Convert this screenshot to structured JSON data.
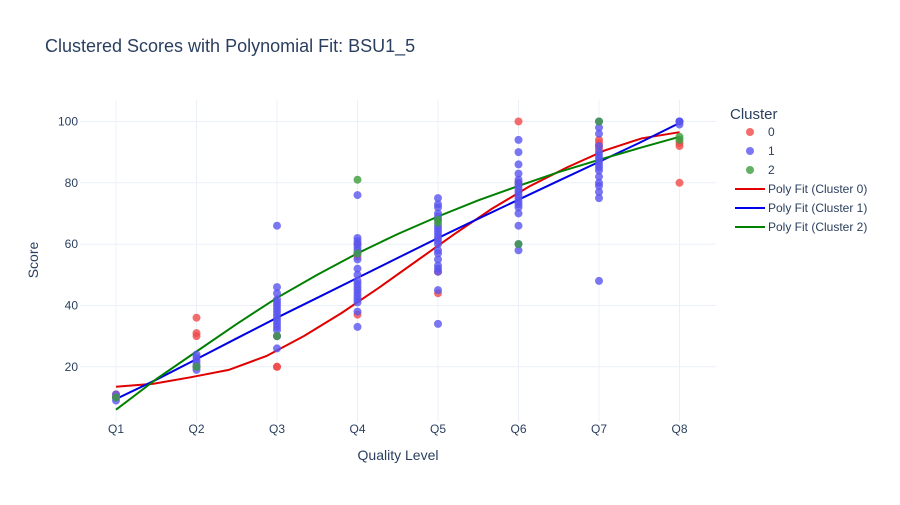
{
  "chart_data": {
    "type": "scatter",
    "title": "Clustered Scores with Polynomial Fit: BSU1_5",
    "xlabel": "Quality Level",
    "ylabel": "Score",
    "categories": [
      "Q1",
      "Q2",
      "Q3",
      "Q4",
      "Q5",
      "Q6",
      "Q7",
      "Q8"
    ],
    "ylim": [
      2,
      107
    ],
    "yticks": [
      20,
      40,
      60,
      80,
      100
    ],
    "grid": true,
    "legend": {
      "title": "Cluster",
      "placement": "right"
    },
    "series": [
      {
        "name": "0",
        "color": "#f04848",
        "points": [
          [
            "Q1",
            10
          ],
          [
            "Q1",
            11
          ],
          [
            "Q2",
            36
          ],
          [
            "Q2",
            31
          ],
          [
            "Q2",
            30
          ],
          [
            "Q2",
            20
          ],
          [
            "Q3",
            20
          ],
          [
            "Q3",
            20
          ],
          [
            "Q3",
            30
          ],
          [
            "Q4",
            37
          ],
          [
            "Q4",
            60
          ],
          [
            "Q4",
            56
          ],
          [
            "Q5",
            44
          ],
          [
            "Q5",
            51
          ],
          [
            "Q6",
            100
          ],
          [
            "Q6",
            80
          ],
          [
            "Q7",
            94
          ],
          [
            "Q7",
            93
          ],
          [
            "Q7",
            92
          ],
          [
            "Q7",
            91
          ],
          [
            "Q8",
            92
          ],
          [
            "Q8",
            80
          ],
          [
            "Q8",
            93
          ]
        ]
      },
      {
        "name": "1",
        "color": "#5a55ef",
        "points": [
          [
            "Q1",
            9
          ],
          [
            "Q1",
            10
          ],
          [
            "Q1",
            11
          ],
          [
            "Q2",
            19
          ],
          [
            "Q2",
            20
          ],
          [
            "Q2",
            21
          ],
          [
            "Q2",
            22
          ],
          [
            "Q2",
            23
          ],
          [
            "Q2",
            24
          ],
          [
            "Q3",
            66
          ],
          [
            "Q3",
            46
          ],
          [
            "Q3",
            44
          ],
          [
            "Q3",
            42
          ],
          [
            "Q3",
            41
          ],
          [
            "Q3",
            40
          ],
          [
            "Q3",
            39
          ],
          [
            "Q3",
            38
          ],
          [
            "Q3",
            37
          ],
          [
            "Q3",
            36
          ],
          [
            "Q3",
            35
          ],
          [
            "Q3",
            34
          ],
          [
            "Q3",
            33
          ],
          [
            "Q3",
            32
          ],
          [
            "Q3",
            30
          ],
          [
            "Q3",
            26
          ],
          [
            "Q4",
            76
          ],
          [
            "Q4",
            62
          ],
          [
            "Q4",
            61
          ],
          [
            "Q4",
            60
          ],
          [
            "Q4",
            59
          ],
          [
            "Q4",
            58
          ],
          [
            "Q4",
            57
          ],
          [
            "Q4",
            55
          ],
          [
            "Q4",
            52
          ],
          [
            "Q4",
            50
          ],
          [
            "Q4",
            48
          ],
          [
            "Q4",
            47
          ],
          [
            "Q4",
            46
          ],
          [
            "Q4",
            45
          ],
          [
            "Q4",
            44
          ],
          [
            "Q4",
            43
          ],
          [
            "Q4",
            42
          ],
          [
            "Q4",
            41
          ],
          [
            "Q4",
            38
          ],
          [
            "Q4",
            33
          ],
          [
            "Q5",
            75
          ],
          [
            "Q5",
            73
          ],
          [
            "Q5",
            72
          ],
          [
            "Q5",
            70
          ],
          [
            "Q5",
            69
          ],
          [
            "Q5",
            68
          ],
          [
            "Q5",
            66
          ],
          [
            "Q5",
            65
          ],
          [
            "Q5",
            64
          ],
          [
            "Q5",
            63
          ],
          [
            "Q5",
            62
          ],
          [
            "Q5",
            61
          ],
          [
            "Q5",
            60
          ],
          [
            "Q5",
            58
          ],
          [
            "Q5",
            57
          ],
          [
            "Q5",
            55
          ],
          [
            "Q5",
            53
          ],
          [
            "Q5",
            52
          ],
          [
            "Q5",
            51
          ],
          [
            "Q5",
            45
          ],
          [
            "Q5",
            34
          ],
          [
            "Q6",
            94
          ],
          [
            "Q6",
            90
          ],
          [
            "Q6",
            86
          ],
          [
            "Q6",
            83
          ],
          [
            "Q6",
            81
          ],
          [
            "Q6",
            80
          ],
          [
            "Q6",
            79
          ],
          [
            "Q6",
            78
          ],
          [
            "Q6",
            77
          ],
          [
            "Q6",
            76
          ],
          [
            "Q6",
            75
          ],
          [
            "Q6",
            74
          ],
          [
            "Q6",
            73
          ],
          [
            "Q6",
            72
          ],
          [
            "Q6",
            70
          ],
          [
            "Q6",
            66
          ],
          [
            "Q6",
            60
          ],
          [
            "Q6",
            58
          ],
          [
            "Q7",
            100
          ],
          [
            "Q7",
            98
          ],
          [
            "Q7",
            96
          ],
          [
            "Q7",
            92
          ],
          [
            "Q7",
            90
          ],
          [
            "Q7",
            89
          ],
          [
            "Q7",
            88
          ],
          [
            "Q7",
            87
          ],
          [
            "Q7",
            86
          ],
          [
            "Q7",
            85
          ],
          [
            "Q7",
            84
          ],
          [
            "Q7",
            82
          ],
          [
            "Q7",
            80
          ],
          [
            "Q7",
            79
          ],
          [
            "Q7",
            77
          ],
          [
            "Q7",
            75
          ],
          [
            "Q7",
            48
          ],
          [
            "Q8",
            100
          ],
          [
            "Q8",
            100
          ],
          [
            "Q8",
            100
          ],
          [
            "Q8",
            99
          ]
        ]
      },
      {
        "name": "2",
        "color": "#3c9c3c",
        "points": [
          [
            "Q1",
            10
          ],
          [
            "Q2",
            20
          ],
          [
            "Q3",
            30
          ],
          [
            "Q4",
            81
          ],
          [
            "Q4",
            57
          ],
          [
            "Q5",
            68
          ],
          [
            "Q5",
            67
          ],
          [
            "Q6",
            60
          ],
          [
            "Q7",
            100
          ],
          [
            "Q8",
            95
          ],
          [
            "Q8",
            94
          ]
        ]
      }
    ],
    "fits": [
      {
        "name": "Poly Fit (Cluster 0)",
        "color": "#e00000",
        "values": [
          13.5,
          14.5,
          16.6,
          19.0,
          23.5,
          30.0,
          37.5,
          45.8,
          54.5,
          63.2,
          71.5,
          78.8,
          85.0,
          90.5,
          94.5,
          96.5
        ]
      },
      {
        "name": "Poly Fit (Cluster 1)",
        "color": "#0000e6",
        "values": [
          9.5,
          15.8,
          22.5,
          29.3,
          36.0,
          42.5,
          49.0,
          55.5,
          62.0,
          68.3,
          74.5,
          80.7,
          86.8,
          93.0,
          99.5
        ]
      },
      {
        "name": "Poly Fit (Cluster 2)",
        "color": "#008000",
        "values": [
          6.0,
          16.0,
          25.0,
          34.0,
          42.5,
          50.0,
          57.0,
          63.3,
          69.0,
          74.3,
          79.0,
          83.5,
          87.5,
          91.3,
          95.0
        ]
      }
    ]
  }
}
